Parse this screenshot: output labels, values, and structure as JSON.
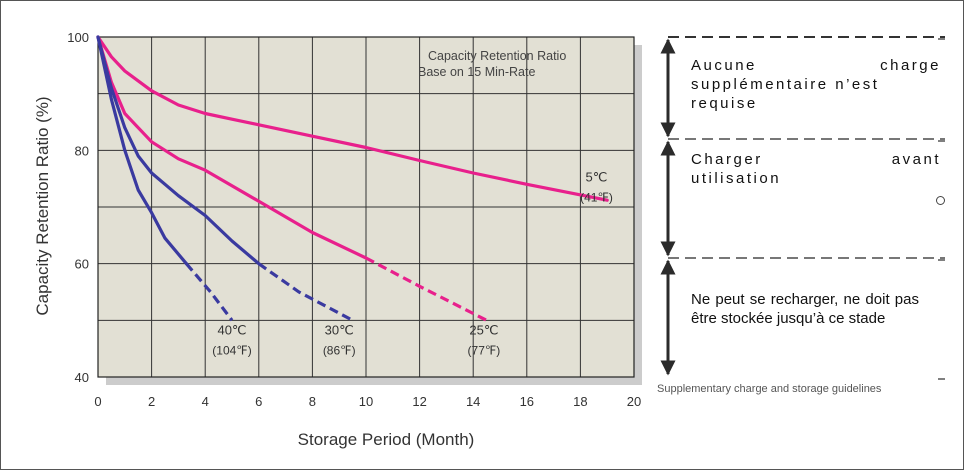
{
  "chart_data": {
    "type": "line",
    "title": "",
    "xlabel": "Storage Period (Month)",
    "ylabel": "Capacity Retention Ratio (%)",
    "xlim": [
      0,
      20
    ],
    "ylim": [
      40,
      100
    ],
    "xticks": [
      "0",
      "2",
      "4",
      "6",
      "8",
      "10",
      "12",
      "14",
      "16",
      "18",
      "20"
    ],
    "yticks": [
      "40",
      "60",
      "80",
      "100"
    ],
    "grid": true,
    "annotation": [
      "Capacity Retention Ratio",
      "Base on 15 Min-Rate"
    ],
    "series": [
      {
        "name": "5℃ (41℉)",
        "label_lines": [
          "5℃",
          "(41℉)"
        ],
        "color": "#e8208c",
        "solid": [
          [
            0,
            100
          ],
          [
            0.5,
            96.5
          ],
          [
            1,
            94
          ],
          [
            2,
            90.5
          ],
          [
            3,
            88
          ],
          [
            4,
            86.5
          ],
          [
            5,
            85.5
          ],
          [
            6,
            84.5
          ],
          [
            8,
            82.5
          ],
          [
            10,
            80.5
          ],
          [
            12,
            78.2
          ],
          [
            14,
            76
          ],
          [
            16,
            74
          ],
          [
            19,
            71.2
          ]
        ],
        "dashed": []
      },
      {
        "name": "25℃ (77℉)",
        "label_lines": [
          "25℃",
          "(77℉)"
        ],
        "color": "#e8208c",
        "solid": [
          [
            0,
            100
          ],
          [
            0.5,
            92
          ],
          [
            1,
            86.5
          ],
          [
            1.5,
            84
          ],
          [
            2,
            81.5
          ],
          [
            3,
            78.5
          ],
          [
            4,
            76.5
          ],
          [
            6,
            71
          ],
          [
            8,
            65.5
          ],
          [
            10,
            61
          ]
        ],
        "dashed": [
          [
            10,
            61
          ],
          [
            12,
            56
          ],
          [
            14.5,
            50
          ]
        ]
      },
      {
        "name": "30℃ (86℉)",
        "label_lines": [
          "30℃",
          "(86℉)"
        ],
        "color": "#3a3aa0",
        "solid": [
          [
            0,
            100
          ],
          [
            0.5,
            91
          ],
          [
            1,
            84
          ],
          [
            1.5,
            79
          ],
          [
            2,
            76
          ],
          [
            2.5,
            74
          ],
          [
            3,
            72
          ],
          [
            4,
            68.5
          ],
          [
            5,
            64
          ],
          [
            6,
            60
          ]
        ],
        "dashed": [
          [
            6,
            60
          ],
          [
            7.5,
            55
          ],
          [
            9.5,
            50
          ]
        ]
      },
      {
        "name": "40℃ (104℉)",
        "label_lines": [
          "40℃",
          "(104℉)"
        ],
        "color": "#3a3aa0",
        "solid": [
          [
            0,
            100
          ],
          [
            0.5,
            89
          ],
          [
            1,
            80
          ],
          [
            1.5,
            73
          ],
          [
            2,
            69
          ],
          [
            2.5,
            64.5
          ],
          [
            3.3,
            60
          ]
        ],
        "dashed": [
          [
            3.3,
            60
          ],
          [
            4.2,
            55
          ],
          [
            5,
            50
          ]
        ]
      }
    ],
    "zones": [
      {
        "range": [
          82,
          100
        ],
        "label": "Aucune charge supplémentaire n’est requise",
        "line1": [
          "Aucune",
          "charge"
        ],
        "rest": [
          "supplémentaire n’est",
          "requise"
        ]
      },
      {
        "range": [
          61,
          82
        ],
        "label": "Charger avant utilisation",
        "line1": [
          "Charger",
          "avant"
        ],
        "rest": [
          "utilisation"
        ]
      },
      {
        "range": [
          40,
          61
        ],
        "label": "Ne peut se recharger, ne doit pas être stockée jusqu’à ce stade"
      }
    ],
    "caption": "Supplementary charge and storage guidelines"
  }
}
